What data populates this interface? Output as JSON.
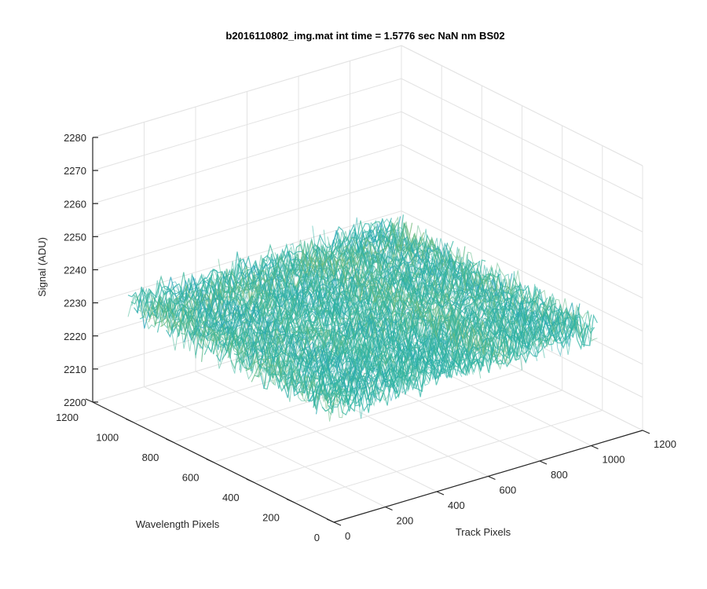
{
  "chart_data": {
    "type": "surface",
    "title": "b2016110802_img.mat int time = 1.5776 sec  NaN nm BS02",
    "xlabel": "Track Pixels",
    "ylabel": "Wavelength Pixels",
    "zlabel": "Signal (ADU)",
    "xlim": [
      0,
      1200
    ],
    "ylim": [
      0,
      1200
    ],
    "zlim": [
      2200,
      2280
    ],
    "x_ticks": [
      "0",
      "200",
      "400",
      "600",
      "800",
      "1000",
      "1200"
    ],
    "y_ticks": [
      "0",
      "200",
      "400",
      "600",
      "800",
      "1000",
      "1200"
    ],
    "z_ticks": [
      "2200",
      "2210",
      "2220",
      "2230",
      "2240",
      "2250",
      "2260",
      "2270",
      "2280"
    ],
    "grid": true,
    "surface": {
      "x_range": [
        0,
        1024
      ],
      "y_range": [
        0,
        1024
      ],
      "mean": 2235,
      "range": [
        2205,
        2270
      ]
    },
    "colors": {
      "low": "#1a8fd6",
      "mid": "#2fb5a0",
      "high": "#e8c23a",
      "grid": "#e3e3e3",
      "axis": "#262626"
    }
  }
}
